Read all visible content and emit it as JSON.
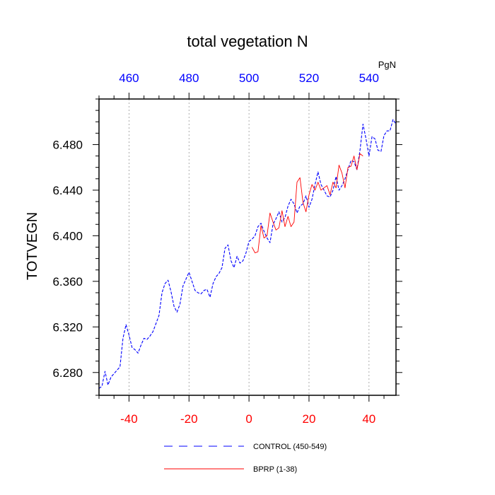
{
  "chart_data": {
    "type": "line",
    "title": "total vegetation N",
    "ylabel": "TOTVEGN",
    "units_label": "PgN",
    "xlim": [
      -50,
      49
    ],
    "ylim": [
      6.26,
      6.52
    ],
    "top_xlim": [
      450,
      549
    ],
    "bottom_ticks": [
      -40,
      -20,
      0,
      20,
      40
    ],
    "bottom_tick_labels": [
      "-40",
      "-20",
      "0",
      "20",
      "40"
    ],
    "top_ticks": [
      460,
      480,
      500,
      520,
      540
    ],
    "top_tick_labels": [
      "460",
      "480",
      "500",
      "520",
      "540"
    ],
    "y_ticks": [
      6.28,
      6.32,
      6.36,
      6.4,
      6.44,
      6.48
    ],
    "y_tick_labels": [
      "6.280",
      "6.320",
      "6.360",
      "6.400",
      "6.440",
      "6.480"
    ],
    "gridlines_x": [
      -40,
      -20,
      0,
      20,
      40
    ],
    "colors": {
      "bottom_axis": "#ff0000",
      "top_axis": "#0000ff",
      "control": "#0000ff",
      "bprp": "#ff0000"
    },
    "series": [
      {
        "name": "CONTROL (450-549)",
        "style": "dashed",
        "x": [
          -50,
          -49,
          -48,
          -47,
          -46,
          -45,
          -44,
          -43,
          -42,
          -41,
          -40,
          -39,
          -38,
          -37,
          -36,
          -35,
          -34,
          -33,
          -32,
          -31,
          -30,
          -29,
          -28,
          -27,
          -26,
          -25,
          -24,
          -23,
          -22,
          -21,
          -20,
          -19,
          -18,
          -17,
          -16,
          -15,
          -14,
          -13,
          -12,
          -11,
          -10,
          -9,
          -8,
          -7,
          -6,
          -5,
          -4,
          -3,
          -2,
          -1,
          0,
          1,
          2,
          3,
          4,
          5,
          6,
          7,
          8,
          9,
          10,
          11,
          12,
          13,
          14,
          15,
          16,
          17,
          18,
          19,
          20,
          21,
          22,
          23,
          24,
          25,
          26,
          27,
          28,
          29,
          30,
          31,
          32,
          33,
          34,
          35,
          36,
          37,
          38,
          39,
          40,
          41,
          42,
          43,
          44,
          45,
          46,
          47,
          48,
          49
        ],
        "values": [
          6.266,
          6.268,
          6.281,
          6.269,
          6.276,
          6.279,
          6.282,
          6.285,
          6.31,
          6.322,
          6.313,
          6.302,
          6.3,
          6.297,
          6.304,
          6.31,
          6.309,
          6.312,
          6.316,
          6.323,
          6.33,
          6.35,
          6.358,
          6.361,
          6.351,
          6.338,
          6.333,
          6.34,
          6.356,
          6.362,
          6.368,
          6.36,
          6.352,
          6.35,
          6.349,
          6.352,
          6.353,
          6.346,
          6.358,
          6.364,
          6.367,
          6.372,
          6.389,
          6.392,
          6.378,
          6.372,
          6.382,
          6.376,
          6.378,
          6.385,
          6.395,
          6.397,
          6.4,
          6.408,
          6.411,
          6.404,
          6.398,
          6.394,
          6.41,
          6.415,
          6.421,
          6.412,
          6.416,
          6.426,
          6.432,
          6.428,
          6.42,
          6.426,
          6.428,
          6.435,
          6.425,
          6.432,
          6.445,
          6.456,
          6.445,
          6.44,
          6.435,
          6.434,
          6.44,
          6.452,
          6.44,
          6.444,
          6.45,
          6.458,
          6.466,
          6.465,
          6.458,
          6.475,
          6.498,
          6.485,
          6.47,
          6.487,
          6.485,
          6.475,
          6.474,
          6.488,
          6.492,
          6.492,
          6.502,
          6.498
        ]
      },
      {
        "name": "BPRP (1-38)",
        "style": "solid",
        "x": [
          1,
          2,
          3,
          4,
          5,
          6,
          7,
          8,
          9,
          10,
          11,
          12,
          13,
          14,
          15,
          16,
          17,
          18,
          19,
          20,
          21,
          22,
          23,
          24,
          25,
          26,
          27,
          28,
          29,
          30,
          31,
          32,
          33,
          34,
          35,
          36,
          37,
          38
        ],
        "values": [
          6.39,
          6.385,
          6.386,
          6.409,
          6.398,
          6.4,
          6.42,
          6.412,
          6.405,
          6.407,
          6.422,
          6.408,
          6.417,
          6.408,
          6.412,
          6.447,
          6.451,
          6.429,
          6.421,
          6.436,
          6.445,
          6.44,
          6.447,
          6.44,
          6.442,
          6.444,
          6.436,
          6.447,
          6.442,
          6.462,
          6.455,
          6.442,
          6.46,
          6.461,
          6.47,
          6.458,
          6.472,
          6.47
        ]
      }
    ],
    "legend": [
      {
        "label": "CONTROL (450-549)",
        "style": "dashed",
        "color": "#0000ff"
      },
      {
        "label": "BPRP (1-38)",
        "style": "solid",
        "color": "#ff0000"
      }
    ]
  }
}
